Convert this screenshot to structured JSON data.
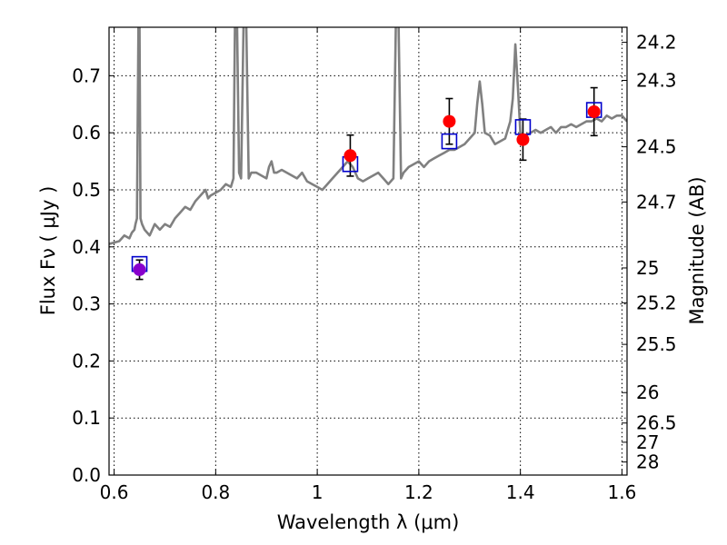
{
  "chart_data": {
    "type": "scatter",
    "xlabel": "Wavelength  λ (μm)",
    "ylabel": "Flux  Fν  ( μJy )",
    "y2label": "Magnitude (AB)",
    "xlim": [
      0.59,
      1.61
    ],
    "ylim": [
      0.0,
      0.785
    ],
    "grid": true,
    "x_ticks": [
      0.6,
      0.8,
      1.0,
      1.2,
      1.4,
      1.6
    ],
    "x_tick_labels": [
      "0.6",
      "0.8",
      "1",
      "1.2",
      "1.4",
      "1.6"
    ],
    "y_ticks": [
      0.0,
      0.1,
      0.2,
      0.3,
      0.4,
      0.5,
      0.6,
      0.7
    ],
    "y_tick_labels": [
      "0.0",
      "0.1",
      "0.2",
      "0.3",
      "0.4",
      "0.5",
      "0.6",
      "0.7"
    ],
    "mag_ticks": [
      "24.2",
      "24.3",
      "24.5",
      "24.7",
      "25",
      "25.2",
      "25.5",
      "26",
      "26.5",
      "27",
      "28"
    ],
    "series": [
      {
        "kind": "line",
        "color": "#808080",
        "x": [
          0.59,
          0.61,
          0.62,
          0.63,
          0.635,
          0.64,
          0.642,
          0.645,
          0.648,
          0.65,
          0.652,
          0.655,
          0.66,
          0.67,
          0.68,
          0.69,
          0.7,
          0.71,
          0.72,
          0.73,
          0.74,
          0.75,
          0.76,
          0.77,
          0.78,
          0.785,
          0.79,
          0.8,
          0.81,
          0.82,
          0.83,
          0.835,
          0.838,
          0.842,
          0.846,
          0.85,
          0.855,
          0.86,
          0.865,
          0.87,
          0.88,
          0.89,
          0.9,
          0.905,
          0.91,
          0.915,
          0.92,
          0.93,
          0.94,
          0.95,
          0.96,
          0.97,
          0.98,
          0.99,
          1.0,
          1.01,
          1.02,
          1.03,
          1.04,
          1.05,
          1.06,
          1.07,
          1.08,
          1.09,
          1.1,
          1.11,
          1.12,
          1.13,
          1.14,
          1.15,
          1.155,
          1.16,
          1.165,
          1.17,
          1.18,
          1.19,
          1.2,
          1.21,
          1.22,
          1.23,
          1.24,
          1.25,
          1.26,
          1.27,
          1.28,
          1.29,
          1.3,
          1.31,
          1.315,
          1.32,
          1.325,
          1.33,
          1.34,
          1.35,
          1.36,
          1.37,
          1.38,
          1.385,
          1.39,
          1.395,
          1.4,
          1.41,
          1.42,
          1.43,
          1.44,
          1.45,
          1.46,
          1.47,
          1.48,
          1.49,
          1.5,
          1.51,
          1.52,
          1.53,
          1.54,
          1.55,
          1.56,
          1.57,
          1.58,
          1.59,
          1.6,
          1.61
        ],
        "y": [
          0.405,
          0.41,
          0.42,
          0.415,
          0.425,
          0.43,
          0.44,
          0.45,
          0.8,
          0.8,
          0.45,
          0.44,
          0.43,
          0.42,
          0.44,
          0.43,
          0.44,
          0.435,
          0.45,
          0.46,
          0.47,
          0.465,
          0.48,
          0.49,
          0.5,
          0.485,
          0.49,
          0.495,
          0.5,
          0.51,
          0.505,
          0.52,
          0.8,
          0.8,
          0.53,
          0.52,
          0.8,
          0.8,
          0.52,
          0.53,
          0.53,
          0.525,
          0.52,
          0.54,
          0.55,
          0.53,
          0.53,
          0.535,
          0.53,
          0.525,
          0.52,
          0.53,
          0.515,
          0.51,
          0.505,
          0.5,
          0.51,
          0.52,
          0.53,
          0.54,
          0.55,
          0.54,
          0.52,
          0.515,
          0.52,
          0.525,
          0.53,
          0.52,
          0.51,
          0.52,
          0.8,
          0.8,
          0.52,
          0.53,
          0.54,
          0.545,
          0.55,
          0.54,
          0.55,
          0.555,
          0.56,
          0.565,
          0.57,
          0.57,
          0.575,
          0.58,
          0.59,
          0.6,
          0.65,
          0.69,
          0.65,
          0.6,
          0.595,
          0.58,
          0.585,
          0.59,
          0.62,
          0.66,
          0.755,
          0.68,
          0.6,
          0.595,
          0.6,
          0.605,
          0.6,
          0.605,
          0.61,
          0.6,
          0.61,
          0.61,
          0.615,
          0.61,
          0.615,
          0.62,
          0.62,
          0.625,
          0.62,
          0.63,
          0.625,
          0.63,
          0.63,
          0.62
        ]
      },
      {
        "kind": "model-points",
        "marker": "open-square",
        "color": "#0000cc",
        "x": [
          0.65,
          1.065,
          1.26,
          1.405,
          1.545
        ],
        "y": [
          0.37,
          0.545,
          0.585,
          0.61,
          0.64
        ]
      },
      {
        "kind": "observed",
        "marker": "filled-circle",
        "color": "#ff0000",
        "x": [
          1.065,
          1.26,
          1.405,
          1.545
        ],
        "y": [
          0.56,
          0.62,
          0.588,
          0.637
        ],
        "yerr": [
          0.036,
          0.04,
          0.036,
          0.042
        ]
      },
      {
        "kind": "observed",
        "marker": "filled-circle",
        "color": "#8800cc",
        "x": [
          0.65
        ],
        "y": [
          0.36
        ],
        "yerr": [
          0.017
        ]
      }
    ]
  }
}
